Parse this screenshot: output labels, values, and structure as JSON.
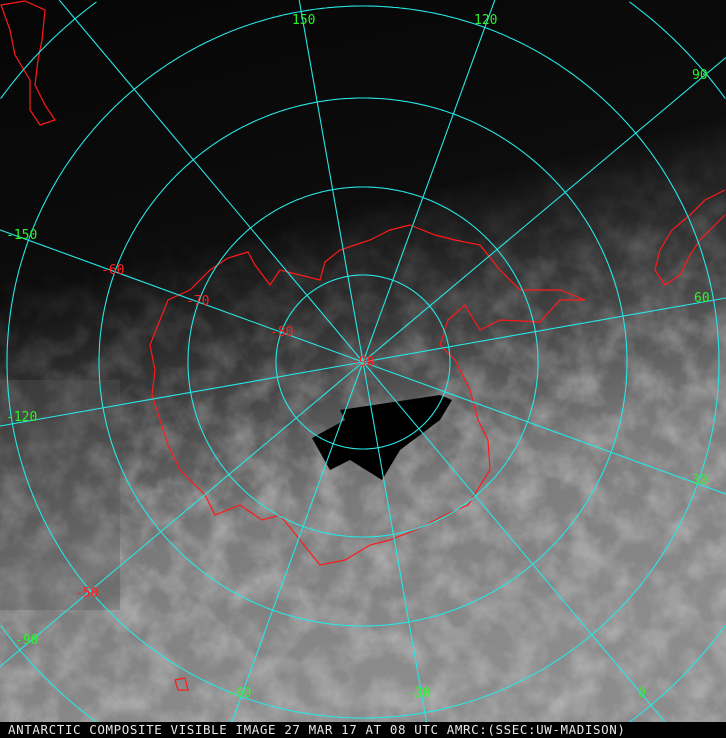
{
  "caption": "ANTARCTIC COMPOSITE VISIBLE IMAGE 27 MAR 17 AT 08 UTC AMRC:(SSEC:UW-MADISON)",
  "colors": {
    "grid": "#28e6e6",
    "coastline": "#ff1a1a",
    "longitude_labels": "#2cf22c",
    "latitude_labels": "#ff2020"
  },
  "longitude_labels": [
    "150",
    "120",
    "90",
    "60",
    "30",
    "0",
    "-30",
    "-60",
    "-90",
    "-120",
    "-150"
  ],
  "latitude_labels": [
    "-90",
    "-80",
    "-70",
    "-60",
    "-50"
  ],
  "projection": "polar stereographic, south pole"
}
